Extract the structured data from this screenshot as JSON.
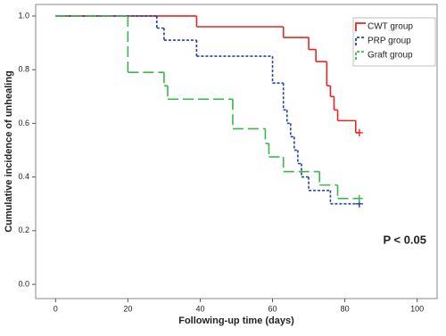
{
  "chart_data": {
    "type": "step",
    "xlabel": "Following-up time (days)",
    "ylabel": "Cumulative incidence of unhealing",
    "annotation": "P < 0.05",
    "xlim": [
      -5.5,
      105.5
    ],
    "ylim": [
      -0.053,
      1.043
    ],
    "xticks": [
      0,
      20,
      40,
      60,
      80,
      100
    ],
    "yticks": [
      {
        "value": 0,
        "label": "0.0"
      },
      {
        "value": 0.2,
        "label": "0.2"
      },
      {
        "value": 0.4,
        "label": "0.4"
      },
      {
        "value": 0.6,
        "label": "0.6"
      },
      {
        "value": 0.8,
        "label": "0.8"
      },
      {
        "value": 1,
        "label": "1.0"
      }
    ],
    "legend": "top-right",
    "series": [
      {
        "name": "CWT group",
        "color": "#e8261f",
        "dash": "none",
        "x": [
          0,
          39,
          63,
          70,
          72,
          75,
          76,
          77,
          78,
          83,
          84
        ],
        "values": [
          1,
          0.96,
          0.92,
          0.875,
          0.83,
          0.74,
          0.7,
          0.65,
          0.61,
          0.565,
          0.565
        ]
      },
      {
        "name": "PRP group",
        "color": "#2040b0",
        "dash": "3 2",
        "x": [
          0,
          28,
          30,
          39,
          60,
          63,
          64,
          65,
          66,
          67,
          68,
          70,
          76,
          84
        ],
        "values": [
          1,
          0.955,
          0.91,
          0.85,
          0.75,
          0.65,
          0.6,
          0.55,
          0.5,
          0.45,
          0.4,
          0.35,
          0.3,
          0.3
        ]
      },
      {
        "name": "Graft group",
        "color": "#3cb54a",
        "dash": "12 5",
        "x": [
          0,
          20,
          30,
          31,
          49,
          58,
          59,
          63,
          73,
          78,
          84
        ],
        "values": [
          1,
          0.79,
          0.74,
          0.69,
          0.58,
          0.525,
          0.475,
          0.42,
          0.37,
          0.32,
          0.32
        ]
      }
    ]
  }
}
